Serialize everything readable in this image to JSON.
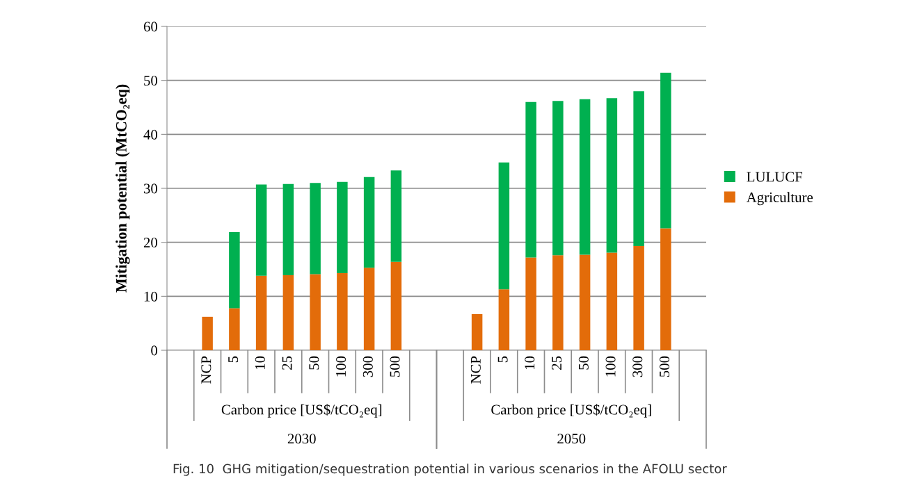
{
  "chart_data": {
    "type": "bar",
    "stacked": true,
    "ylabel": "Mitigation potential (MtCO₂eq)",
    "categories": [
      null,
      "NCP",
      "5",
      "10",
      "25",
      "50",
      "100",
      "300",
      "500",
      null,
      null,
      "NCP",
      "5",
      "10",
      "25",
      "50",
      "100",
      "300",
      "500",
      null
    ],
    "series": [
      {
        "name": "Agriculture",
        "color": "#e36c0a",
        "values": [
          null,
          6.2,
          7.8,
          13.8,
          13.9,
          14.1,
          14.3,
          15.3,
          16.4,
          null,
          null,
          6.7,
          11.3,
          17.2,
          17.6,
          17.7,
          18.1,
          19.3,
          22.6,
          null
        ]
      },
      {
        "name": "LULUCF",
        "color": "#00b050",
        "values": [
          null,
          null,
          14.1,
          16.9,
          16.9,
          16.9,
          16.9,
          16.8,
          16.9,
          null,
          null,
          null,
          23.5,
          28.8,
          28.6,
          28.8,
          28.6,
          28.7,
          28.8,
          null
        ]
      }
    ],
    "ylim": [
      0,
      60
    ],
    "yticks": [
      0,
      10,
      20,
      30,
      40,
      50,
      60
    ],
    "grid": "y",
    "legend": "right",
    "annotations": [
      "Carbon price [US$/tCO₂eq]",
      "Carbon price [US$/tCO₂eq]",
      "2030",
      "2050",
      "Fig. 10  GHG mitigation/sequestration potential in various scenarios in the AFOLU sector"
    ]
  }
}
